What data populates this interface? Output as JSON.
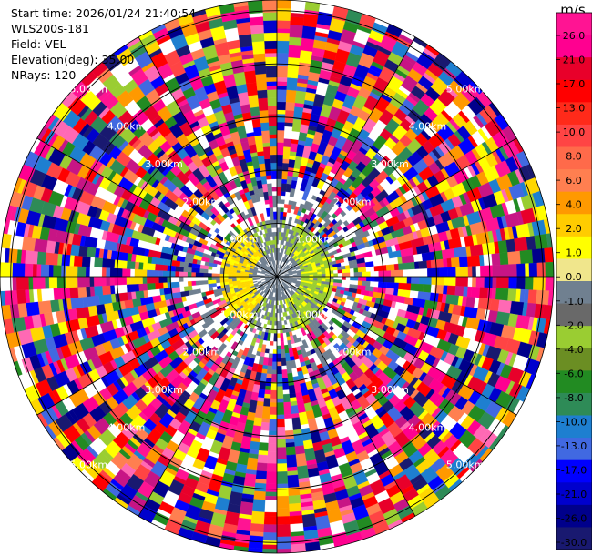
{
  "header": {
    "start_time": "Start time: 2026/01/24 21:40:54",
    "instrument": "WLS200s-181",
    "field": "Field: VEL",
    "elevation": "Elevation(deg): 35.00",
    "nrays": "NRays: 120"
  },
  "colorbar": {
    "unit": "m/s",
    "ticks": [
      "26.0",
      "21.0",
      "17.0",
      "13.0",
      "10.0",
      "8.0",
      "6.0",
      "4.0",
      "2.0",
      "1.0",
      "0.0",
      "-1.0",
      "-2.0",
      "-4.0",
      "-6.0",
      "-8.0",
      "-10.0",
      "-13.0",
      "-17.0",
      "-21.0",
      "-26.0",
      "-30.0"
    ],
    "colors": [
      "#ff1493",
      "#ff0090",
      "#e8002a",
      "#ff0000",
      "#ff2a1a",
      "#ff4444",
      "#ff6a4a",
      "#ff7f50",
      "#ff9900",
      "#ffcc00",
      "#ffff00",
      "#f0e68c",
      "#708090",
      "#696969",
      "#9acd32",
      "#6b8e23",
      "#228b22",
      "#2e8b57",
      "#1e7fd0",
      "#4169e1",
      "#0000ff",
      "#0000cd",
      "#00008b",
      "#191970"
    ]
  },
  "chart_data": {
    "type": "heatmap",
    "projection": "polar PPI",
    "field": "VEL",
    "units": "m/s",
    "nrays": 120,
    "elevation_deg": 35.0,
    "value_range": [
      -30.0,
      26.0
    ],
    "range_ring_labels": [
      "1.00km",
      "2.00km",
      "3.00km",
      "4.00km",
      "5.00km"
    ],
    "max_range_km": 5.2
  }
}
